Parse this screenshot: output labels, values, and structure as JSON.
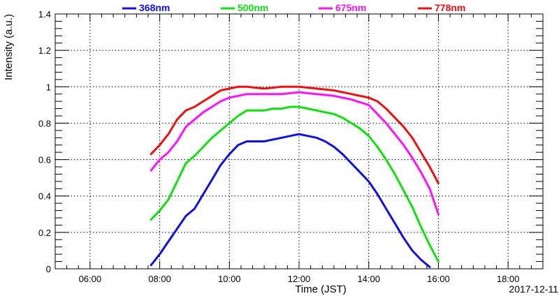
{
  "chart_data": {
    "type": "line",
    "title": "",
    "xlabel": "Time (JST)",
    "ylabel": "Intensity (a.u.)",
    "date_label": "2017-12-11",
    "xlim": [
      "05:00",
      "19:00"
    ],
    "ylim": [
      0,
      1.4
    ],
    "grid": true,
    "legend_position": "top",
    "x_ticks": [
      "06:00",
      "08:00",
      "10:00",
      "12:00",
      "14:00",
      "16:00",
      "18:00"
    ],
    "y_ticks": [
      "0",
      "0.2",
      "0.4",
      "0.6",
      "0.8",
      "1",
      "1.2",
      "1.4"
    ],
    "series": [
      {
        "name": "368nm",
        "color": "#1010e0",
        "points": [
          [
            "07:45",
            0.02
          ],
          [
            "07:50",
            0.04
          ],
          [
            "08:00",
            0.08
          ],
          [
            "08:15",
            0.15
          ],
          [
            "08:30",
            0.22
          ],
          [
            "08:45",
            0.29
          ],
          [
            "09:00",
            0.33
          ],
          [
            "09:15",
            0.41
          ],
          [
            "09:30",
            0.49
          ],
          [
            "09:45",
            0.57
          ],
          [
            "10:00",
            0.63
          ],
          [
            "10:15",
            0.68
          ],
          [
            "10:30",
            0.7
          ],
          [
            "10:45",
            0.7
          ],
          [
            "11:00",
            0.7
          ],
          [
            "11:15",
            0.71
          ],
          [
            "11:30",
            0.72
          ],
          [
            "11:45",
            0.73
          ],
          [
            "12:00",
            0.74
          ],
          [
            "12:15",
            0.73
          ],
          [
            "12:30",
            0.72
          ],
          [
            "12:45",
            0.7
          ],
          [
            "13:00",
            0.67
          ],
          [
            "13:15",
            0.63
          ],
          [
            "13:30",
            0.58
          ],
          [
            "13:45",
            0.53
          ],
          [
            "14:00",
            0.48
          ],
          [
            "14:15",
            0.41
          ],
          [
            "14:30",
            0.33
          ],
          [
            "14:45",
            0.25
          ],
          [
            "15:00",
            0.17
          ],
          [
            "15:15",
            0.1
          ],
          [
            "15:30",
            0.05
          ],
          [
            "15:45",
            0.01
          ]
        ]
      },
      {
        "name": "500nm",
        "color": "#10e010",
        "points": [
          [
            "07:45",
            0.27
          ],
          [
            "08:00",
            0.32
          ],
          [
            "08:15",
            0.38
          ],
          [
            "08:30",
            0.48
          ],
          [
            "08:45",
            0.58
          ],
          [
            "09:00",
            0.62
          ],
          [
            "09:15",
            0.67
          ],
          [
            "09:30",
            0.72
          ],
          [
            "09:45",
            0.76
          ],
          [
            "10:00",
            0.8
          ],
          [
            "10:15",
            0.84
          ],
          [
            "10:30",
            0.87
          ],
          [
            "10:45",
            0.87
          ],
          [
            "11:00",
            0.87
          ],
          [
            "11:15",
            0.88
          ],
          [
            "11:30",
            0.88
          ],
          [
            "11:45",
            0.89
          ],
          [
            "12:00",
            0.89
          ],
          [
            "12:15",
            0.88
          ],
          [
            "12:30",
            0.87
          ],
          [
            "12:45",
            0.86
          ],
          [
            "13:00",
            0.85
          ],
          [
            "13:15",
            0.83
          ],
          [
            "13:30",
            0.8
          ],
          [
            "13:45",
            0.77
          ],
          [
            "14:00",
            0.73
          ],
          [
            "14:15",
            0.67
          ],
          [
            "14:30",
            0.6
          ],
          [
            "14:45",
            0.52
          ],
          [
            "15:00",
            0.43
          ],
          [
            "15:15",
            0.34
          ],
          [
            "15:30",
            0.23
          ],
          [
            "15:45",
            0.13
          ],
          [
            "16:00",
            0.04
          ]
        ]
      },
      {
        "name": "675nm",
        "color": "#ff10ff",
        "points": [
          [
            "07:45",
            0.54
          ],
          [
            "08:00",
            0.6
          ],
          [
            "08:15",
            0.64
          ],
          [
            "08:30",
            0.7
          ],
          [
            "08:45",
            0.78
          ],
          [
            "09:00",
            0.82
          ],
          [
            "09:15",
            0.86
          ],
          [
            "09:30",
            0.89
          ],
          [
            "09:45",
            0.92
          ],
          [
            "10:00",
            0.94
          ],
          [
            "10:15",
            0.95
          ],
          [
            "10:30",
            0.96
          ],
          [
            "11:00",
            0.96
          ],
          [
            "11:30",
            0.96
          ],
          [
            "12:00",
            0.97
          ],
          [
            "12:30",
            0.96
          ],
          [
            "13:00",
            0.95
          ],
          [
            "13:30",
            0.93
          ],
          [
            "14:00",
            0.9
          ],
          [
            "14:15",
            0.85
          ],
          [
            "14:30",
            0.8
          ],
          [
            "14:45",
            0.74
          ],
          [
            "15:00",
            0.68
          ],
          [
            "15:15",
            0.61
          ],
          [
            "15:30",
            0.53
          ],
          [
            "15:45",
            0.44
          ],
          [
            "16:00",
            0.3
          ]
        ]
      },
      {
        "name": "778nm",
        "color": "#ee1010",
        "points": [
          [
            "07:45",
            0.63
          ],
          [
            "08:00",
            0.68
          ],
          [
            "08:15",
            0.74
          ],
          [
            "08:30",
            0.82
          ],
          [
            "08:45",
            0.87
          ],
          [
            "09:00",
            0.89
          ],
          [
            "09:15",
            0.92
          ],
          [
            "09:30",
            0.95
          ],
          [
            "09:45",
            0.98
          ],
          [
            "10:00",
            0.99
          ],
          [
            "10:15",
            1.0
          ],
          [
            "10:30",
            1.0
          ],
          [
            "11:00",
            0.99
          ],
          [
            "11:30",
            1.0
          ],
          [
            "12:00",
            1.0
          ],
          [
            "12:30",
            0.99
          ],
          [
            "13:00",
            0.98
          ],
          [
            "13:30",
            0.96
          ],
          [
            "14:00",
            0.94
          ],
          [
            "14:15",
            0.92
          ],
          [
            "14:30",
            0.88
          ],
          [
            "14:45",
            0.83
          ],
          [
            "15:00",
            0.78
          ],
          [
            "15:15",
            0.72
          ],
          [
            "15:30",
            0.64
          ],
          [
            "15:45",
            0.56
          ],
          [
            "16:00",
            0.47
          ]
        ]
      }
    ]
  }
}
